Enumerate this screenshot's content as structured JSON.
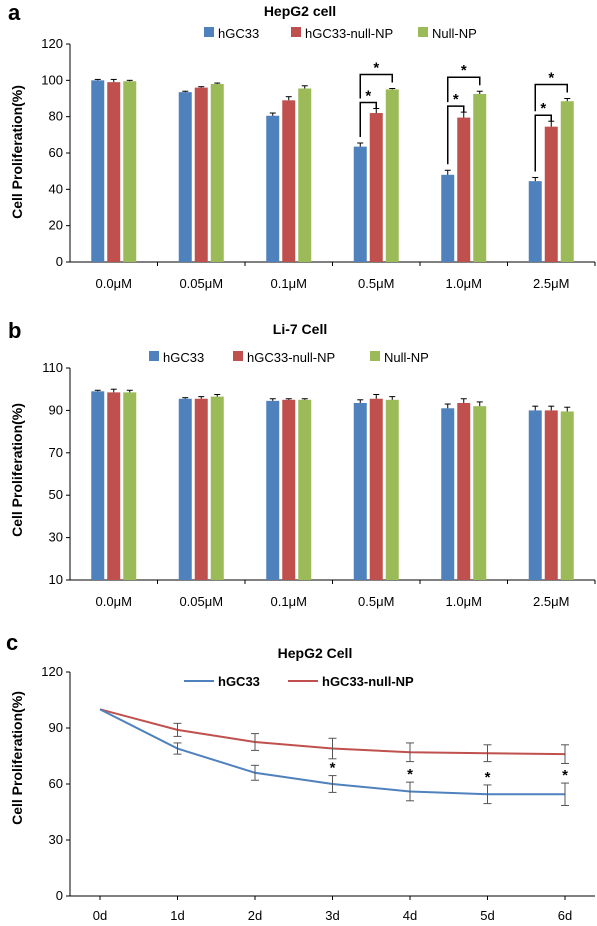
{
  "colors": {
    "blue": "#4F81BD",
    "red": "#C0504D",
    "green": "#9BBB59",
    "axis": "#000000"
  },
  "chart_data": [
    {
      "panel": "a",
      "type": "bar",
      "title": "HepG2 cell",
      "ylabel": "Cell Proliferation(%)",
      "xlabel": "",
      "ylim": [
        0,
        120
      ],
      "yticks": [
        0,
        20,
        40,
        60,
        80,
        100,
        120
      ],
      "categories": [
        "0.0μM",
        "0.05μM",
        "0.1μM",
        "0.5μM",
        "1.0μM",
        "2.5μM"
      ],
      "legend_position": "top-center",
      "grid": false,
      "series": [
        {
          "name": "hGC33",
          "color": "#4F81BD",
          "values": [
            100,
            93.5,
            80.5,
            63.5,
            48,
            44.5
          ],
          "errors": [
            0.5,
            0.5,
            1.5,
            2,
            2.5,
            2
          ]
        },
        {
          "name": "hGC33-null-NP",
          "color": "#C0504D",
          "values": [
            99,
            96,
            89,
            82,
            79.5,
            74.5
          ],
          "errors": [
            1.5,
            0.5,
            2,
            2.5,
            3,
            3
          ]
        },
        {
          "name": "Null-NP",
          "color": "#9BBB59",
          "values": [
            99.5,
            98,
            95.5,
            95,
            92.5,
            88.5
          ],
          "errors": [
            0.5,
            0.5,
            1.5,
            0.5,
            1.5,
            1.5
          ]
        }
      ],
      "annotations": [
        {
          "category": "0.5μM",
          "pair": "hGC33 vs hGC33-null-NP",
          "text": "*"
        },
        {
          "category": "0.5μM",
          "pair": "hGC33 vs Null-NP",
          "text": "*"
        },
        {
          "category": "1.0μM",
          "pair": "hGC33 vs hGC33-null-NP",
          "text": "*"
        },
        {
          "category": "1.0μM",
          "pair": "hGC33 vs Null-NP",
          "text": "*"
        },
        {
          "category": "2.5μM",
          "pair": "hGC33 vs hGC33-null-NP",
          "text": "*"
        },
        {
          "category": "2.5μM",
          "pair": "hGC33 vs Null-NP",
          "text": "*"
        }
      ]
    },
    {
      "panel": "b",
      "type": "bar",
      "title": "Li-7 Cell",
      "ylabel": "Cell Proliferation(%)",
      "xlabel": "",
      "ylim": [
        10,
        110
      ],
      "yticks": [
        10,
        30,
        50,
        70,
        90,
        110
      ],
      "categories": [
        "0.0μM",
        "0.05μM",
        "0.1μM",
        "0.5μM",
        "1.0μM",
        "2.5μM"
      ],
      "legend_position": "top-center",
      "grid": false,
      "series": [
        {
          "name": "hGC33",
          "color": "#4F81BD",
          "values": [
            99,
            95.5,
            94.5,
            93.5,
            91,
            90
          ],
          "errors": [
            0.5,
            0.5,
            1,
            1.5,
            2,
            2
          ]
        },
        {
          "name": "hGC33-null-NP",
          "color": "#C0504D",
          "values": [
            98.5,
            95.5,
            95,
            95.5,
            93.5,
            90
          ],
          "errors": [
            1.5,
            1,
            0.5,
            2,
            2,
            2
          ]
        },
        {
          "name": "Null-NP",
          "color": "#9BBB59",
          "values": [
            98.5,
            96.5,
            95,
            95,
            92,
            89.5
          ],
          "errors": [
            1,
            1,
            0.5,
            1.5,
            2,
            2
          ]
        }
      ]
    },
    {
      "panel": "c",
      "type": "line",
      "title": "HepG2 Cell",
      "ylabel": "Cell Proliferation(%)",
      "xlabel": "",
      "ylim": [
        0,
        120
      ],
      "yticks": [
        0,
        30,
        60,
        90,
        120
      ],
      "x": [
        "0d",
        "1d",
        "2d",
        "3d",
        "4d",
        "5d",
        "6d"
      ],
      "legend_position": "top-center",
      "grid": false,
      "series": [
        {
          "name": "hGC33",
          "color": "#4F81BD",
          "values": [
            100,
            79,
            66,
            60,
            56,
            54.5,
            54.5
          ],
          "errors": [
            1,
            3,
            4,
            4.5,
            5,
            5,
            6
          ]
        },
        {
          "name": "hGC33-null-NP",
          "color": "#C0504D",
          "values": [
            100,
            89,
            82.5,
            79,
            77,
            76.5,
            76
          ],
          "errors": [
            1,
            3.5,
            4.5,
            5.5,
            5,
            4.5,
            5
          ]
        }
      ],
      "annotations": [
        {
          "x": "3d",
          "text": "*"
        },
        {
          "x": "4d",
          "text": "*"
        },
        {
          "x": "5d",
          "text": "*"
        },
        {
          "x": "6d",
          "text": "*"
        }
      ]
    }
  ]
}
